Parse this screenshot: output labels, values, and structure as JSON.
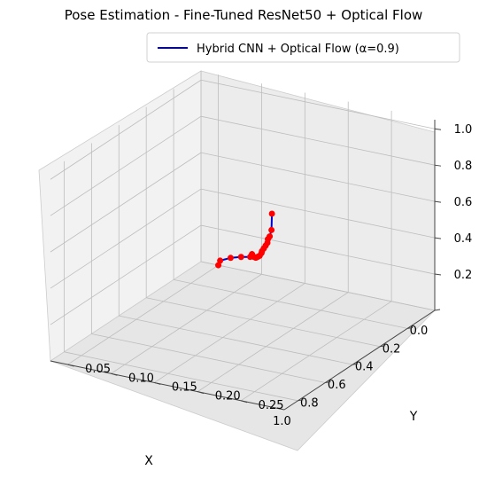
{
  "chart_data": {
    "type": "line",
    "projection": "3d",
    "title": "Pose Estimation - Fine-Tuned ResNet50 + Optical Flow",
    "xlabel": "X",
    "ylabel": "Y",
    "zlabel": "",
    "xlim": [
      0.0,
      1.1
    ],
    "ylim": [
      0.03,
      0.3
    ],
    "zlim": [
      0.0,
      1.05
    ],
    "xticks": [
      "0.0",
      "0.2",
      "0.4",
      "0.6",
      "0.8",
      "1.0"
    ],
    "yticks": [
      "0.05",
      "0.10",
      "0.15",
      "0.20",
      "0.25"
    ],
    "zticks": [
      "0.2",
      "0.4",
      "0.6",
      "0.8",
      "1.0"
    ],
    "grid": true,
    "legend": "top-right",
    "series": [
      {
        "name": "Hybrid CNN + Optical Flow (α=0.9)",
        "line_color": "#0000cc",
        "marker_color": "#ff0000",
        "x": [
          0.0,
          0.05,
          0.1,
          0.15,
          0.21,
          0.26,
          0.31,
          0.36,
          0.42,
          0.47,
          0.52,
          0.57,
          0.63,
          0.68,
          0.73,
          0.78,
          0.84,
          0.89,
          0.94,
          1.0
        ],
        "y": [
          0.05,
          0.06,
          0.08,
          0.1,
          0.12,
          0.13,
          0.14,
          0.15,
          0.16,
          0.17,
          0.18,
          0.19,
          0.2,
          0.21,
          0.22,
          0.23,
          0.24,
          0.25,
          0.26,
          0.27
        ],
        "z": [
          0.0,
          0.06,
          0.12,
          0.17,
          0.22,
          0.27,
          0.29,
          0.32,
          0.36,
          0.4,
          0.44,
          0.49,
          0.54,
          0.59,
          0.64,
          0.69,
          0.75,
          0.8,
          0.87,
          1.0
        ]
      }
    ]
  }
}
